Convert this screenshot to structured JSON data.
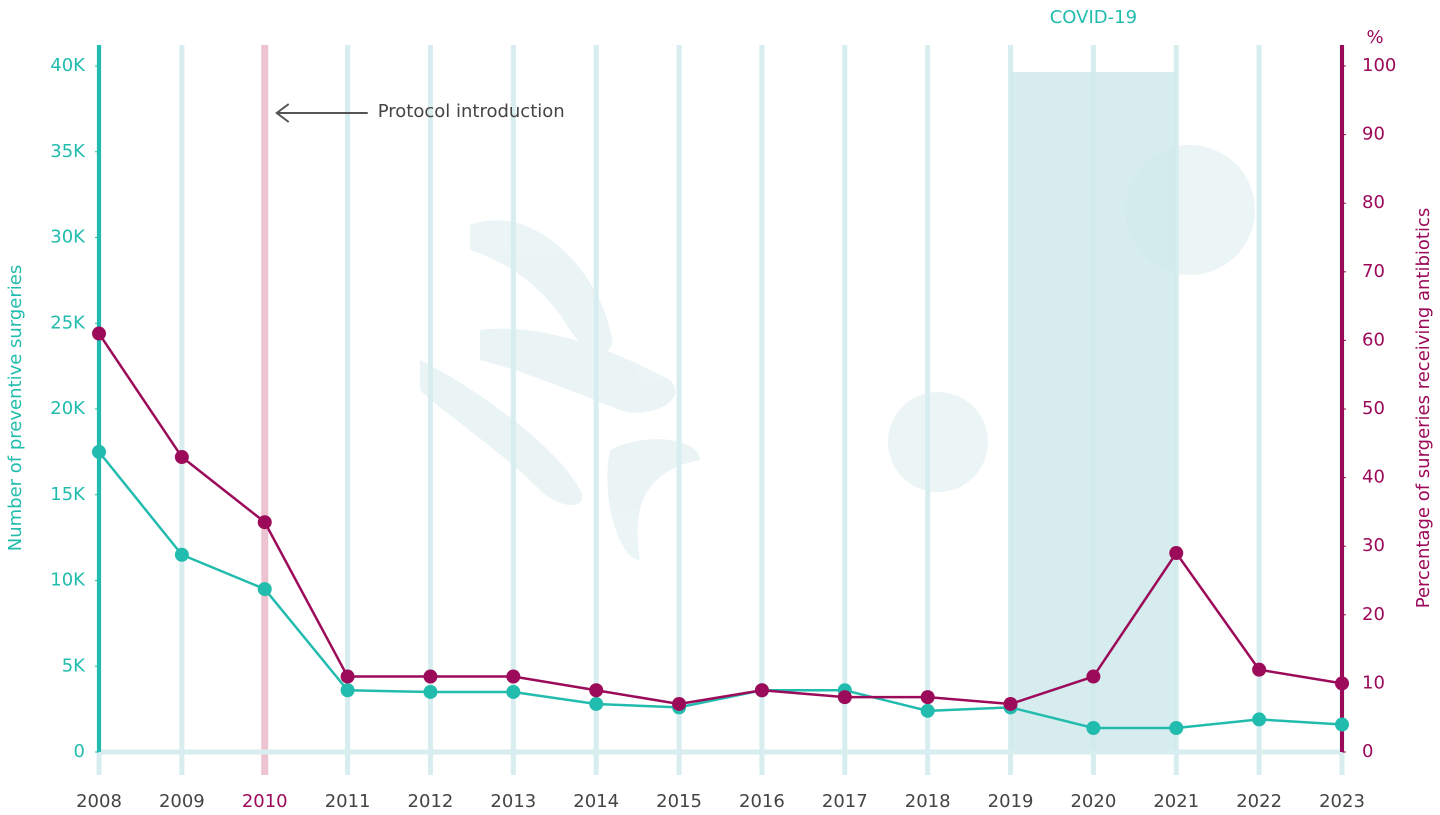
{
  "chart_data": {
    "type": "line",
    "categories": [
      "2008",
      "2009",
      "2010",
      "2011",
      "2012",
      "2013",
      "2014",
      "2015",
      "2016",
      "2017",
      "2018",
      "2019",
      "2020",
      "2021",
      "2022",
      "2023"
    ],
    "series": [
      {
        "name": "Number of preventive surgeries",
        "color": "#22bcae",
        "axis": "y",
        "values": [
          17500,
          11500,
          9500,
          3600,
          3500,
          3500,
          2800,
          2600,
          3600,
          3600,
          2400,
          2600,
          1400,
          1400,
          1900,
          1600
        ]
      },
      {
        "name": "Percentage of surgeries receiving antibiotics",
        "color": "#9c0a5a",
        "axis": "y2",
        "values": [
          61,
          43,
          33.5,
          11,
          11,
          11,
          9,
          7,
          9,
          8,
          8,
          7,
          11,
          29,
          12,
          10
        ]
      }
    ],
    "y_label": "Number of preventive surgeries",
    "y2_label": "Percentage of surgeries receiving antibiotics",
    "y2_unit": "%",
    "ylim": [
      0,
      40000
    ],
    "yticks": [
      0,
      {
        "value": 5000,
        "label": "5K"
      },
      {
        "value": 10000,
        "label": "10K"
      },
      {
        "value": 15000,
        "label": "15K"
      },
      {
        "value": 20000,
        "label": "20K"
      },
      {
        "value": 25000,
        "label": "25K"
      },
      {
        "value": 30000,
        "label": "30K"
      },
      {
        "value": 35000,
        "label": "35K"
      },
      {
        "value": 40000,
        "label": "40K"
      }
    ],
    "y2lim": [
      0,
      100
    ],
    "y2ticks": [
      0,
      10,
      20,
      30,
      40,
      50,
      60,
      70,
      80,
      90,
      100
    ],
    "grid": true,
    "grid_color": "#d7edef",
    "annotations": [
      {
        "text": "COVID-19",
        "from": "2019",
        "to": "2021",
        "color": "#d0e9eb"
      },
      {
        "text": "Protocol introduction",
        "at": "2010",
        "color": "#ecc3d1"
      }
    ]
  }
}
